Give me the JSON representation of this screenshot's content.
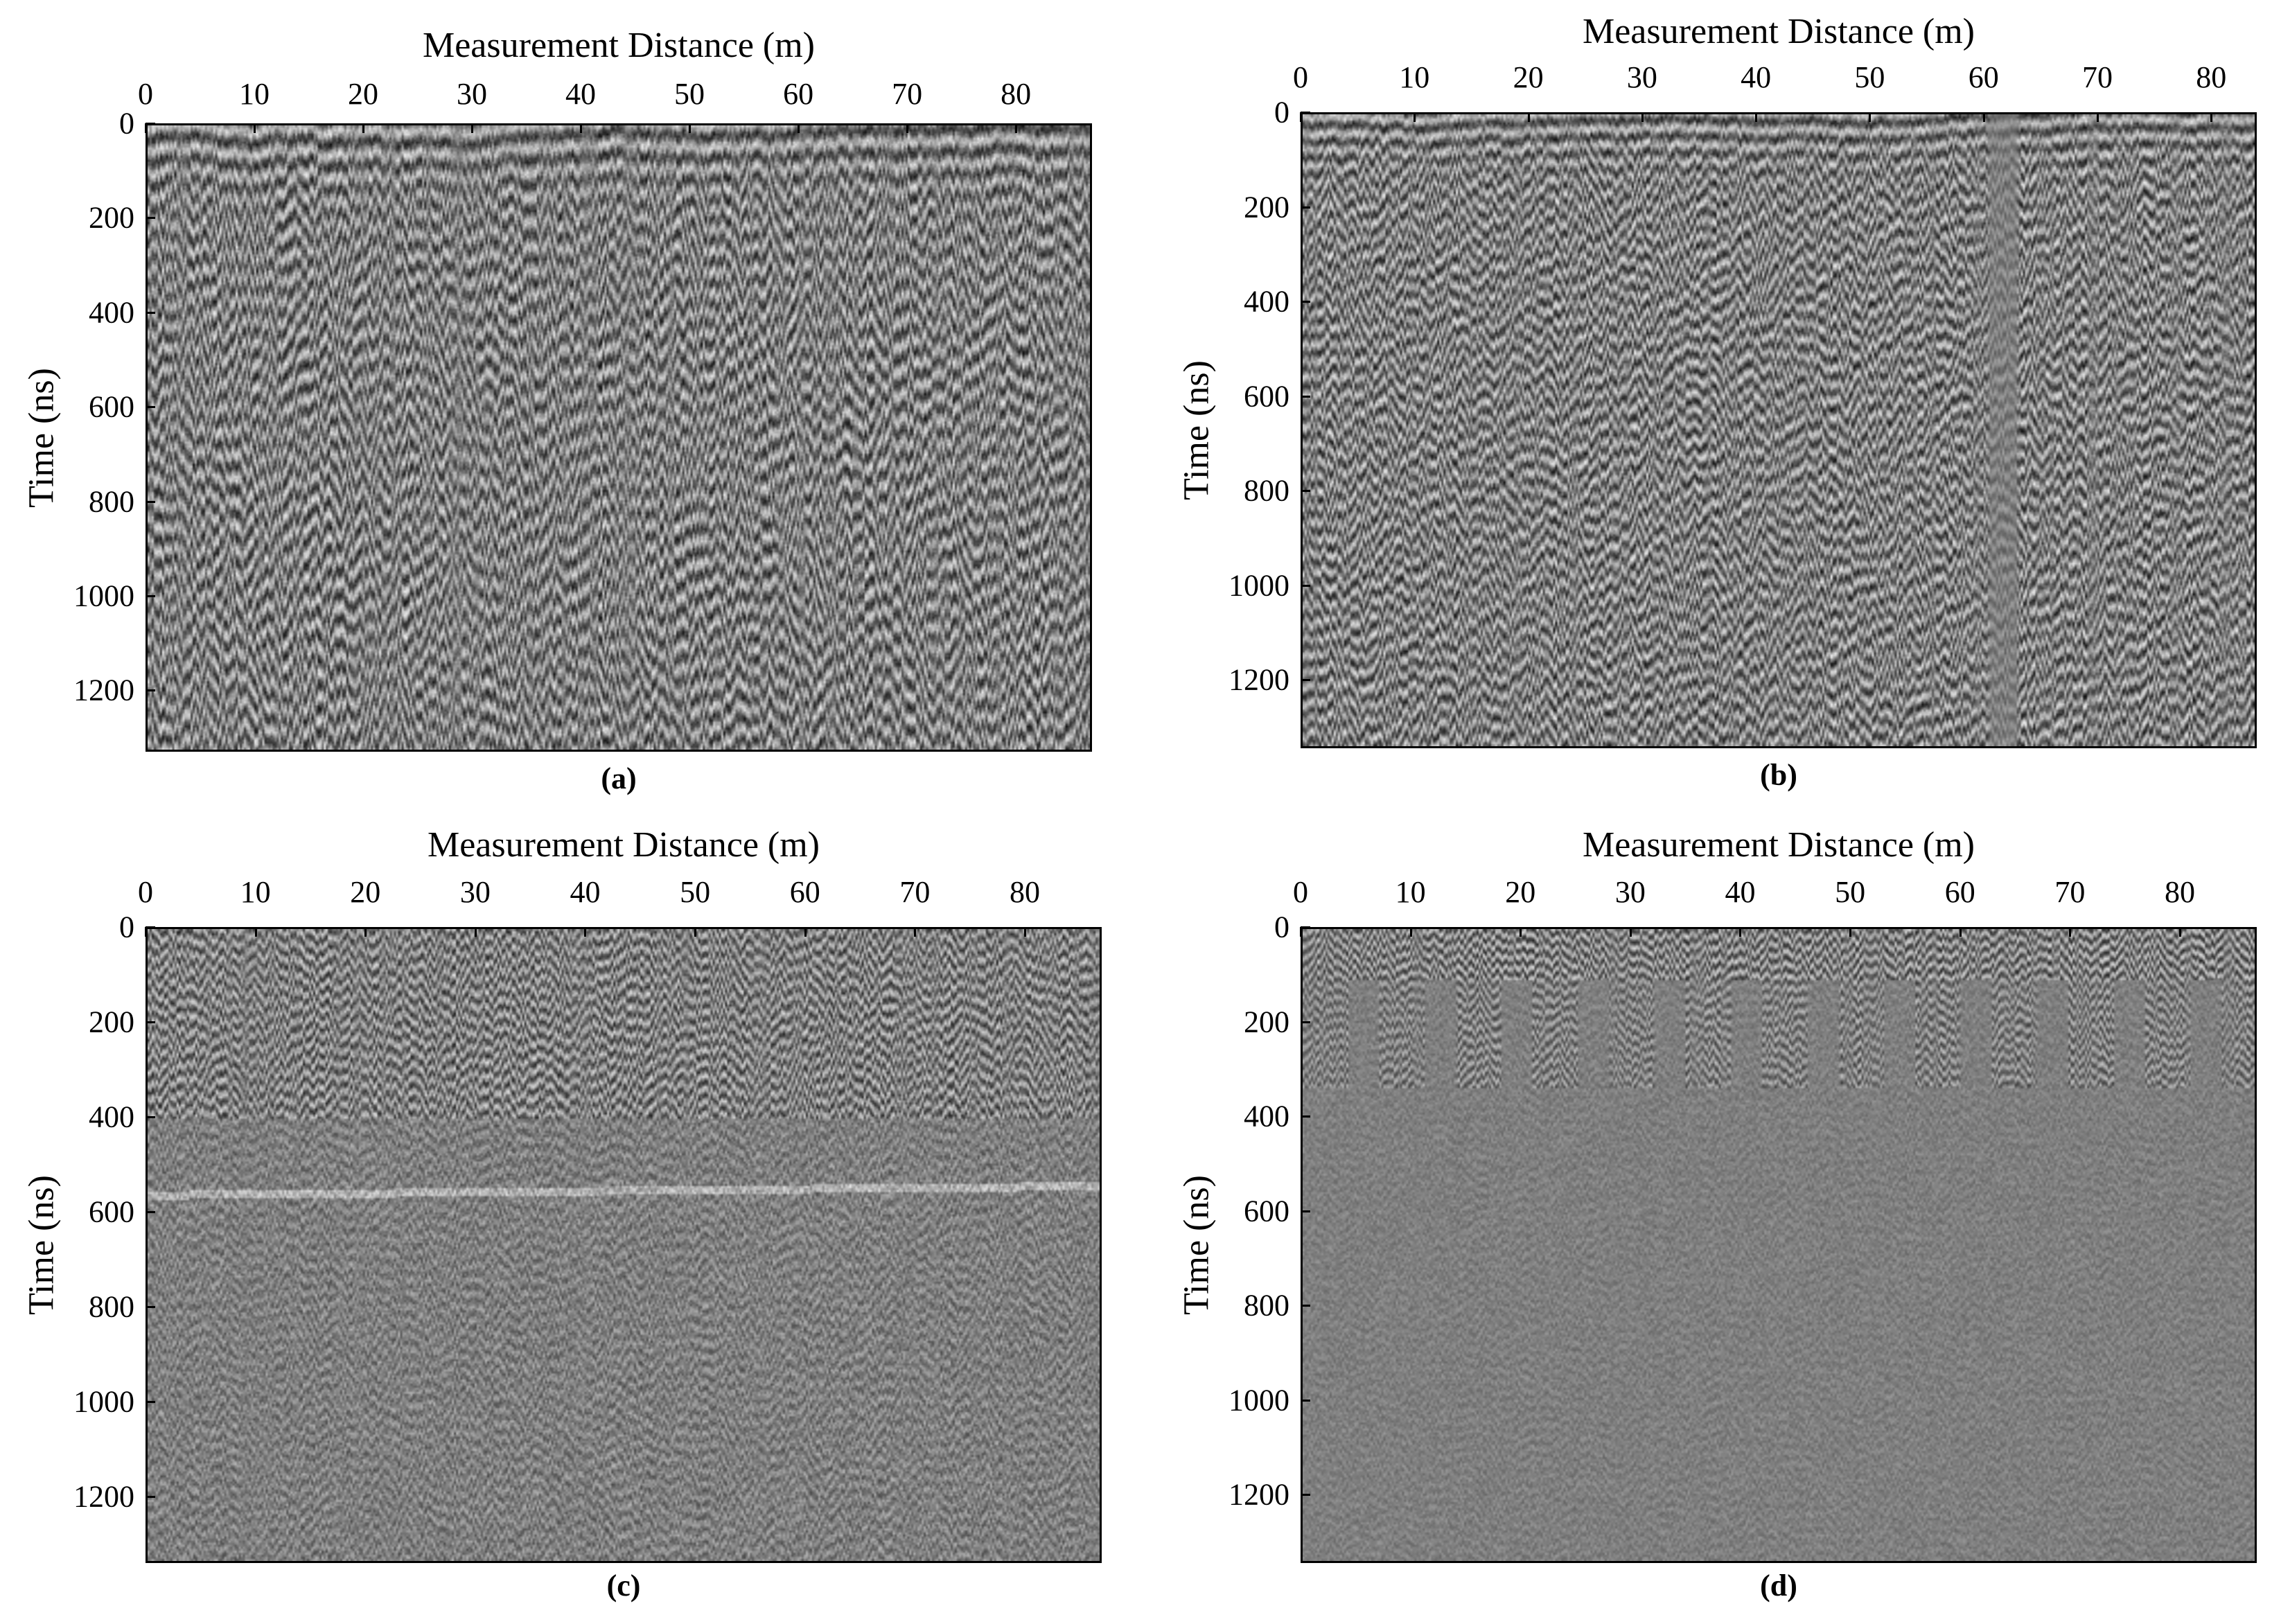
{
  "chart_data": [
    {
      "type": "heatmap",
      "caption": "(a)",
      "xlabel": "Measurement Distance (m)",
      "ylabel": "Time (ns)",
      "x_ticks": [
        0,
        10,
        20,
        30,
        40,
        50,
        60,
        70,
        80
      ],
      "y_ticks": [
        0,
        200,
        400,
        600,
        800,
        1000,
        1200
      ],
      "xlim": [
        0,
        87
      ],
      "ylim": [
        0,
        1330
      ],
      "colormap": "grayscale",
      "x_axis_position": "top",
      "y_axis_reversed": true
    },
    {
      "type": "heatmap",
      "caption": "(b)",
      "xlabel": "Measurement Distance (m)",
      "ylabel": "Time (ns)",
      "x_ticks": [
        0,
        10,
        20,
        30,
        40,
        50,
        60,
        70,
        80
      ],
      "y_ticks": [
        0,
        200,
        400,
        600,
        800,
        1000,
        1200
      ],
      "xlim": [
        0,
        84
      ],
      "ylim": [
        0,
        1345
      ],
      "colormap": "grayscale",
      "x_axis_position": "top",
      "y_axis_reversed": true
    },
    {
      "type": "heatmap",
      "caption": "(c)",
      "xlabel": "Measurement Distance (m)",
      "ylabel": "Time (ns)",
      "x_ticks": [
        0,
        10,
        20,
        30,
        40,
        50,
        60,
        70,
        80
      ],
      "y_ticks": [
        0,
        200,
        400,
        600,
        800,
        1000,
        1200
      ],
      "xlim": [
        0,
        87
      ],
      "ylim": [
        0,
        1340
      ],
      "colormap": "grayscale",
      "x_axis_position": "top",
      "y_axis_reversed": true
    },
    {
      "type": "heatmap",
      "caption": "(d)",
      "xlabel": "Measurement Distance (m)",
      "ylabel": "Time (ns)",
      "x_ticks": [
        0,
        10,
        20,
        30,
        40,
        50,
        60,
        70,
        80
      ],
      "y_ticks": [
        0,
        200,
        400,
        600,
        800,
        1000,
        1200
      ],
      "xlim": [
        0,
        87
      ],
      "ylim": [
        0,
        1345
      ],
      "colormap": "grayscale",
      "x_axis_position": "top",
      "y_axis_reversed": true
    }
  ]
}
